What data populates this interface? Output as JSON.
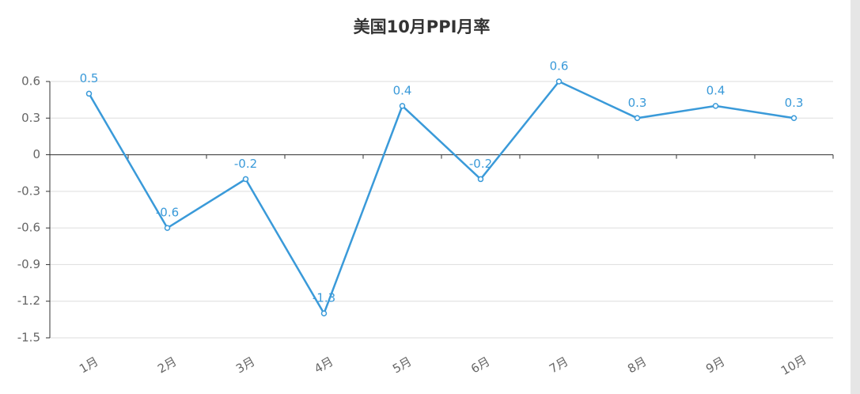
{
  "chart_data": {
    "type": "line",
    "title": "美国10月PPI月率",
    "categories": [
      "1月",
      "2月",
      "3月",
      "4月",
      "5月",
      "6月",
      "7月",
      "8月",
      "9月",
      "10月"
    ],
    "series": [
      {
        "name": "PPI月率",
        "color": "#3a9ad9",
        "values": [
          0.5,
          -0.6,
          -0.2,
          -1.3,
          0.4,
          -0.2,
          0.6,
          0.3,
          0.4,
          0.3
        ]
      }
    ],
    "ylim": [
      -1.5,
      0.6
    ],
    "yticks": [
      -1.5,
      -1.2,
      -0.9,
      -0.6,
      -0.3,
      0,
      0.3,
      0.6
    ],
    "grid": true
  }
}
